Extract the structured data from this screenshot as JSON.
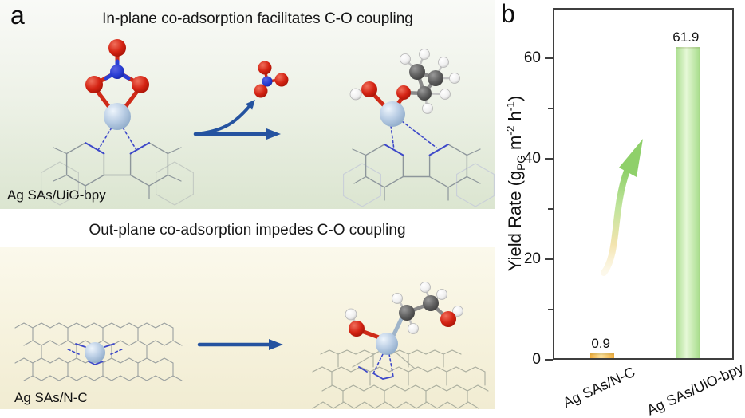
{
  "figure": {
    "panel_a": {
      "label": "a",
      "top": {
        "title": "In-plane co-adsorption facilitates C-O coupling",
        "structure_label": "Ag SAs/UiO-bpy"
      },
      "bottom": {
        "title": "Out-plane co-adsorption impedes C-O coupling",
        "structure_label": "Ag SAs/N-C"
      }
    },
    "panel_b": {
      "label": "b"
    }
  },
  "chart_data": {
    "type": "bar",
    "categories": [
      "Ag SAs/N-C",
      "Ag SAs/UiO-bpy"
    ],
    "values": [
      0.9,
      61.9
    ],
    "value_labels": [
      "0.9",
      "61.9"
    ],
    "bar_colors_edge": [
      "#f2ae3c",
      "#a8dd8c"
    ],
    "bar_colors_center": [
      "#fbe09b",
      "#e6f8d7"
    ],
    "title": "",
    "xlabel": "",
    "ylabel": "Yield Rate (gPG m-2 h-1)",
    "ylabel_parts": {
      "pre": "Yield Rate (g",
      "sub": "PG",
      "mid1": " m",
      "sup1": "-2",
      "mid2": " h",
      "sup2": "-1",
      "post": ")"
    },
    "ylim": [
      0,
      70
    ],
    "yticks": [
      0,
      20,
      40,
      60
    ],
    "yticks_minor": [
      10,
      30,
      50
    ],
    "grid": false,
    "legend": false,
    "annotations": [
      "curved growth arrow from small bar toward tall bar"
    ]
  },
  "icons": {
    "reaction_arrow": "straight-right-arrow",
    "release_arrow": "curved-up-arrow",
    "trend_arrow": "curved-growth-arrow"
  },
  "colors": {
    "arrow_blue": "#2553a0",
    "silver_atom": "#b9cde4",
    "oxygen": "#d42313",
    "nitrogen": "#2a3fd4",
    "carbon": "#5f5f5f",
    "hydrogen": "#f2f2f2",
    "panel_a_top_bg_start": "#f9faf7",
    "panel_a_top_bg_end": "#dbe5d0",
    "panel_a_bottom_bg_start": "#fbf9ec",
    "panel_a_bottom_bg_end": "#f1ecd2"
  }
}
